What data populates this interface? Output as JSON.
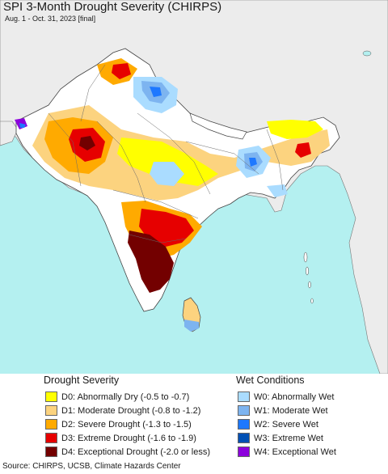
{
  "header": {
    "title": "SPI 3-Month Drought Severity (CHIRPS)",
    "subtitle": "Aug. 1 - Oct. 31, 2023 [final]"
  },
  "colors": {
    "ocean": "#b4f0f0",
    "land_outside": "#ececec",
    "land_normal": "#ffffff",
    "border": "#555555",
    "D0": "#ffff00",
    "D1": "#fcd37f",
    "D2": "#ffaa00",
    "D3": "#e60000",
    "D4": "#730000",
    "W0": "#aadcff",
    "W1": "#7db4f0",
    "W2": "#1e78ff",
    "W3": "#0050b4",
    "W4": "#8c00dc"
  },
  "legend": {
    "drought_heading": "Drought Severity",
    "wet_heading": "Wet Conditions",
    "drought_items": [
      {
        "code": "D0",
        "label": "D0: Abnormally Dry (-0.5 to -0.7)"
      },
      {
        "code": "D1",
        "label": "D1: Moderate Drought (-0.8 to -1.2)"
      },
      {
        "code": "D2",
        "label": "D2: Severe Drought (-1.3 to -1.5)"
      },
      {
        "code": "D3",
        "label": "D3: Extreme Drought (-1.6 to -1.9)"
      },
      {
        "code": "D4",
        "label": "D4: Exceptional Drought (-2.0 or less)"
      }
    ],
    "wet_items": [
      {
        "code": "W0",
        "label": "W0: Abnormally Wet"
      },
      {
        "code": "W1",
        "label": "W1: Moderate Wet"
      },
      {
        "code": "W2",
        "label": "W2: Severe Wet"
      },
      {
        "code": "W3",
        "label": "W3: Extreme Wet"
      },
      {
        "code": "W4",
        "label": "W4: Exceptional Wet"
      }
    ]
  },
  "footer": {
    "source": "Source: CHIRPS, UCSB, Climate Hazards Center"
  }
}
